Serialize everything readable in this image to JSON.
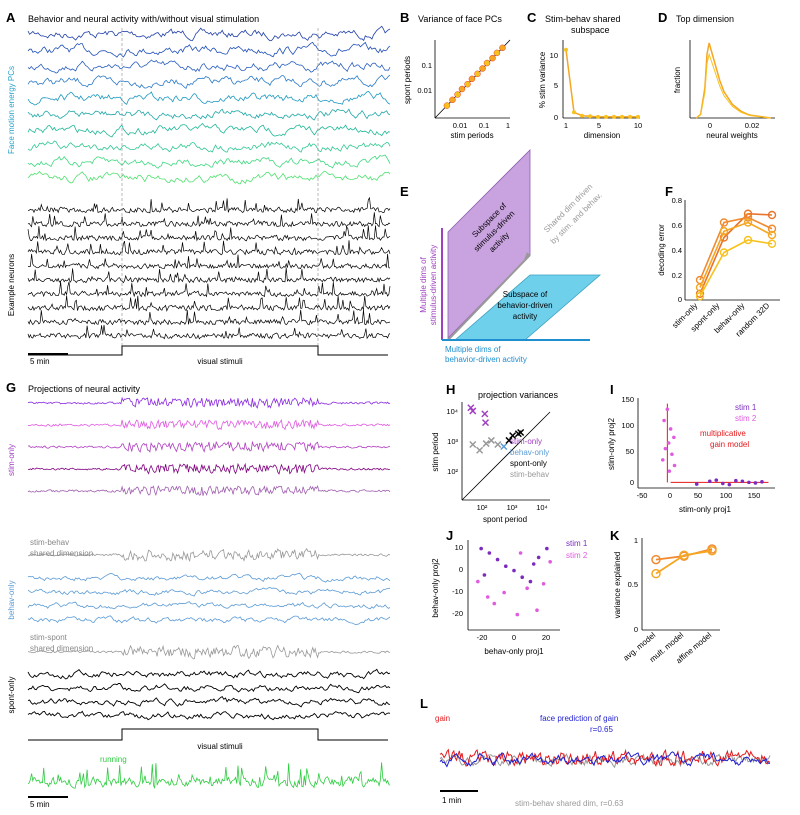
{
  "panels": {
    "A": {
      "letter": "A",
      "title": "Behavior and neural activity with/without visual stimulation",
      "pc_label": "Face motion energy PCs",
      "neuron_label": "Example neurons",
      "scalebar": "5 min",
      "stim_label": "visual stimuli"
    },
    "B": {
      "letter": "B",
      "title": "Variance of face PCs",
      "ylabel": "spont periods",
      "xlabel": "stim periods",
      "yticks": [
        "0.1",
        "0.01"
      ],
      "xticks": [
        "0.01",
        "0.1",
        "1"
      ]
    },
    "C": {
      "letter": "C",
      "title1": "Stim-behav shared",
      "title2": "subspace",
      "ylabel": "% stim variance",
      "xlabel": "dimension",
      "yticks": [
        "10",
        "5",
        "0"
      ],
      "xticks": [
        "1",
        "5",
        "10"
      ]
    },
    "D": {
      "letter": "D",
      "title": "Top dimension",
      "ylabel": "fraction",
      "xlabel": "neural weights",
      "xticks": [
        "0",
        "0.02"
      ]
    },
    "E": {
      "letter": "E",
      "stim_subspace": [
        "Subspace of",
        "stimulus-driven",
        "activity"
      ],
      "behav_subspace": [
        "Subspace of",
        "behavior-driven",
        "activity"
      ],
      "shared_dim": [
        "Shared dim driven",
        "by stim. and behav."
      ],
      "stim_dims": [
        "Multiple dims of",
        "stimulus-driven activity"
      ],
      "behav_dims": [
        "Multiple dims of",
        "behavior-driven activity"
      ]
    },
    "F": {
      "letter": "F",
      "ylabel": "decoding error",
      "yticks": [
        "0.8",
        "0.6",
        "0.4",
        "0.2",
        "0"
      ],
      "categories": [
        "stim-only",
        "spont-only",
        "behav-only",
        "random 32D"
      ]
    },
    "G": {
      "letter": "G",
      "title": "Projections of neural activity",
      "stim_only": "stim-only",
      "shared1": [
        "stim-behav",
        "shared dimension"
      ],
      "behav_only": "behav-only",
      "shared2": [
        "stim-spont",
        "shared dimension"
      ],
      "spont_only": "spont-only",
      "stim_label": "visual stimuli",
      "running": "running",
      "scalebar": "5 min"
    },
    "H": {
      "letter": "H",
      "title": "projection variances",
      "ylabel": "stim period",
      "xlabel": "spont period",
      "yticks": [
        "10⁴",
        "10³",
        "10²"
      ],
      "xticks": [
        "10²",
        "10³",
        "10⁴"
      ],
      "legend": [
        "stim-only",
        "behav-only",
        "spont-only",
        "stim-behav"
      ]
    },
    "I": {
      "letter": "I",
      "ylabel": "stim-only proj2",
      "xlabel": "stim-only proj1",
      "yticks": [
        "150",
        "100",
        "50",
        "0"
      ],
      "xticks": [
        "-50",
        "0",
        "50",
        "100",
        "150"
      ],
      "legend": [
        "stim 1",
        "stim 2"
      ],
      "model": [
        "multiplicative",
        "gain model"
      ]
    },
    "J": {
      "letter": "J",
      "ylabel": "behav-only proj2",
      "xlabel": "behav-only proj1",
      "yticks": [
        "10",
        "0",
        "-10",
        "-20"
      ],
      "xticks": [
        "-20",
        "0",
        "20"
      ],
      "legend": [
        "stim 1",
        "stim 2"
      ]
    },
    "K": {
      "letter": "K",
      "ylabel": "variance explained",
      "yticks": [
        "1",
        "0.5",
        "0"
      ],
      "categories": [
        "avg. model",
        "mult. model",
        "affine model"
      ]
    },
    "L": {
      "letter": "L",
      "gain": "gain",
      "face_pred": "face prediction of gain",
      "r_face": "r=0.65",
      "scalebar": "1 min",
      "shared": "stim-behav shared dim, r=0.63"
    }
  },
  "colors": {
    "stim": "#a040c0",
    "behav": "#5b9bd5",
    "spont": "#000000",
    "shared": "#999999",
    "gain": "#e41a1c",
    "pred": "#1f1fd0",
    "running": "#2ecc40",
    "orange": "#f5a623"
  },
  "chart_data": [
    {
      "id": "B",
      "type": "scatter",
      "title": "Variance of face PCs",
      "xlabel": "stim periods",
      "ylabel": "spont periods",
      "xlim": [
        0.001,
        1
      ],
      "ylim": [
        0.001,
        1
      ],
      "scale": "log",
      "x": [
        0.003,
        0.005,
        0.008,
        0.012,
        0.02,
        0.03,
        0.05,
        0.08,
        0.12,
        0.2,
        0.3,
        0.5
      ],
      "y": [
        0.003,
        0.005,
        0.008,
        0.013,
        0.02,
        0.032,
        0.05,
        0.08,
        0.13,
        0.2,
        0.32,
        0.5
      ]
    },
    {
      "id": "C",
      "type": "line",
      "title": "Stim-behav shared subspace",
      "xlabel": "dimension",
      "ylabel": "% stim variance",
      "x": [
        1,
        2,
        3,
        4,
        5,
        6,
        7,
        8,
        9,
        10
      ],
      "values": [
        12,
        1.0,
        0.4,
        0.3,
        0.2,
        0.2,
        0.2,
        0.2,
        0.2,
        0.2
      ],
      "ylim": [
        0,
        13
      ]
    },
    {
      "id": "D",
      "type": "line",
      "title": "Top dimension",
      "xlabel": "neural weights",
      "ylabel": "fraction",
      "x": [
        -0.005,
        -0.003,
        -0.001,
        0,
        0.001,
        0.002,
        0.004,
        0.006,
        0.008,
        0.012,
        0.016,
        0.02,
        0.025,
        0.03
      ],
      "values": [
        0.0,
        0.05,
        0.4,
        0.85,
        1.0,
        0.9,
        0.7,
        0.5,
        0.35,
        0.18,
        0.09,
        0.04,
        0.02,
        0.0
      ]
    },
    {
      "id": "F",
      "type": "line",
      "ylabel": "decoding error",
      "categories": [
        "stim-only",
        "spont-only",
        "behav-only",
        "random 32D"
      ],
      "ylim": [
        0,
        0.8
      ],
      "series": [
        {
          "name": "m1",
          "values": [
            0.05,
            0.5,
            0.69,
            0.68
          ]
        },
        {
          "name": "m2",
          "values": [
            0.16,
            0.62,
            0.66,
            0.57
          ]
        },
        {
          "name": "m3",
          "values": [
            0.1,
            0.55,
            0.62,
            0.52
          ]
        },
        {
          "name": "m4",
          "values": [
            0.03,
            0.38,
            0.48,
            0.45
          ]
        }
      ]
    },
    {
      "id": "H",
      "type": "scatter",
      "title": "projection variances",
      "xlabel": "spont period",
      "ylabel": "stim period",
      "xlim": [
        30,
        30000
      ],
      "ylim": [
        30,
        30000
      ],
      "scale": "log",
      "series": [
        {
          "name": "stim-only",
          "x": [
            60,
            70,
            180,
            190
          ],
          "y": [
            20000,
            16000,
            13000,
            7000
          ]
        },
        {
          "name": "behav-only",
          "x": [
            800
          ],
          "y": [
            1300
          ]
        },
        {
          "name": "spont-only",
          "x": [
            1200,
            1600,
            2500,
            3000
          ],
          "y": [
            2000,
            2800,
            3200,
            3500
          ]
        },
        {
          "name": "stim-behav",
          "x": [
            70,
            120,
            200,
            300,
            500
          ],
          "y": [
            1500,
            1000,
            1600,
            2000,
            1500
          ]
        }
      ]
    },
    {
      "id": "I",
      "type": "scatter",
      "xlabel": "stim-only proj1",
      "ylabel": "stim-only proj2",
      "xlim": [
        -50,
        160
      ],
      "ylim": [
        -10,
        150
      ],
      "series": [
        {
          "name": "stim 1",
          "x": [
            40,
            60,
            80,
            100,
            120,
            140,
            70,
            90,
            110,
            130
          ],
          "y": [
            -3,
            2,
            -2,
            3,
            0,
            1,
            4,
            -4,
            2,
            -1
          ]
        },
        {
          "name": "stim 2",
          "x": [
            -5,
            -10,
            0,
            5,
            -3,
            -8,
            2,
            -12,
            6,
            -2
          ],
          "y": [
            130,
            110,
            95,
            80,
            70,
            60,
            50,
            40,
            30,
            20
          ]
        }
      ]
    },
    {
      "id": "J",
      "type": "scatter",
      "xlabel": "behav-only proj1",
      "ylabel": "behav-only proj2",
      "xlim": [
        -28,
        28
      ],
      "ylim": [
        -27,
        13
      ],
      "series": [
        {
          "name": "stim 1",
          "x": [
            -20,
            -15,
            -10,
            -5,
            0,
            5,
            10,
            15,
            20,
            -18,
            12
          ],
          "y": [
            10,
            8,
            5,
            2,
            0,
            -3,
            -5,
            6,
            10,
            -2,
            3
          ]
        },
        {
          "name": "stim 2",
          "x": [
            -22,
            -12,
            -6,
            2,
            8,
            14,
            22,
            -16,
            4,
            18
          ],
          "y": [
            -5,
            -15,
            -10,
            -20,
            -8,
            -18,
            4,
            -12,
            8,
            -6
          ]
        }
      ]
    },
    {
      "id": "K",
      "type": "line",
      "ylabel": "variance explained",
      "categories": [
        "avg. model",
        "mult. model",
        "affine model"
      ],
      "ylim": [
        0,
        1
      ],
      "series": [
        {
          "name": "m1",
          "values": [
            0.8,
            0.84,
            0.92
          ]
        },
        {
          "name": "m2",
          "values": [
            0.64,
            0.85,
            0.9
          ]
        }
      ]
    }
  ]
}
